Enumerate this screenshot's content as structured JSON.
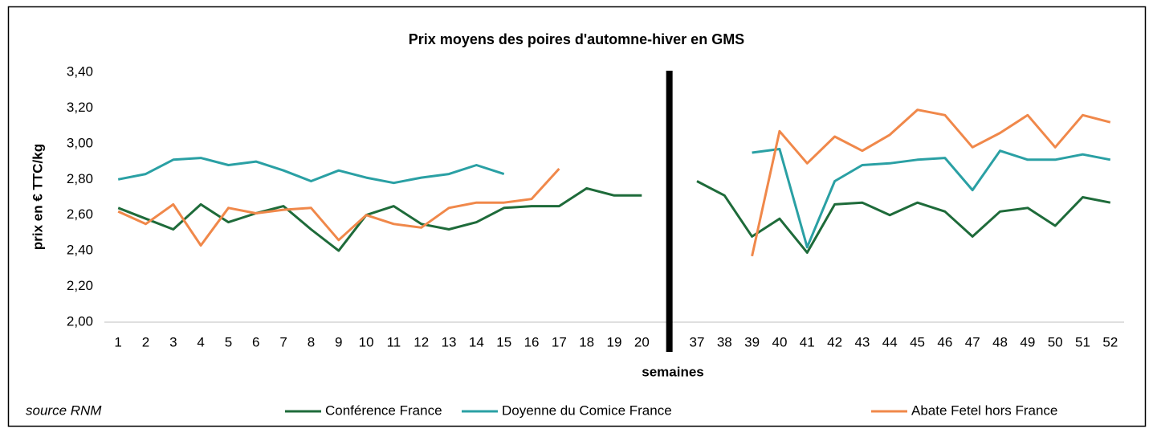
{
  "chart_data": {
    "type": "line",
    "title": "Prix moyens des poires d'automne-hiver en GMS",
    "y_label": "prix en € TTC/kg",
    "x_label": "semaines",
    "source": "source RNM",
    "categories": [
      "1",
      "2",
      "3",
      "4",
      "5",
      "6",
      "7",
      "8",
      "9",
      "10",
      "11",
      "12",
      "13",
      "14",
      "15",
      "16",
      "17",
      "18",
      "19",
      "20",
      null,
      "37",
      "38",
      "39",
      "40",
      "41",
      "42",
      "43",
      "44",
      "45",
      "46",
      "47",
      "48",
      "49",
      "50",
      "51",
      "52"
    ],
    "series": [
      {
        "name": "Conférence France",
        "color": "#1e6b3a",
        "values": [
          2.64,
          2.58,
          2.52,
          2.66,
          2.56,
          2.61,
          2.65,
          2.52,
          2.4,
          2.6,
          2.65,
          2.55,
          2.52,
          2.56,
          2.64,
          2.65,
          2.65,
          2.75,
          2.71,
          2.71,
          null,
          2.79,
          2.71,
          2.48,
          2.58,
          2.39,
          2.66,
          2.67,
          2.6,
          2.67,
          2.62,
          2.48,
          2.62,
          2.64,
          2.54,
          2.7,
          2.67
        ]
      },
      {
        "name": "Doyenne du Comice France",
        "color": "#2aa0a4",
        "values": [
          2.8,
          2.83,
          2.91,
          2.92,
          2.88,
          2.9,
          2.85,
          2.79,
          2.85,
          2.81,
          2.78,
          2.81,
          2.83,
          2.88,
          2.83,
          null,
          null,
          null,
          null,
          null,
          null,
          null,
          null,
          2.95,
          2.97,
          2.42,
          2.79,
          2.88,
          2.89,
          2.91,
          2.92,
          2.74,
          2.96,
          2.91,
          2.91,
          2.94,
          2.91
        ]
      },
      {
        "name": "Abate Fetel hors France",
        "color": "#f0884a",
        "values": [
          2.62,
          2.55,
          2.66,
          2.43,
          2.64,
          2.61,
          2.63,
          2.64,
          2.46,
          2.6,
          2.55,
          2.53,
          2.64,
          2.67,
          2.67,
          2.69,
          2.86,
          null,
          null,
          null,
          null,
          null,
          null,
          2.37,
          3.07,
          2.89,
          3.04,
          2.96,
          3.05,
          3.19,
          3.16,
          2.98,
          3.06,
          3.16,
          2.98,
          3.16,
          3.12
        ]
      }
    ],
    "ylim": [
      2.0,
      3.4
    ],
    "yticks": [
      {
        "value": 2.0,
        "label": "2,00"
      },
      {
        "value": 2.2,
        "label": "2,20"
      },
      {
        "value": 2.4,
        "label": "2,40"
      },
      {
        "value": 2.6,
        "label": "2,60"
      },
      {
        "value": 2.8,
        "label": "2,80"
      },
      {
        "value": 3.0,
        "label": "3,00"
      },
      {
        "value": 3.2,
        "label": "3,20"
      },
      {
        "value": 3.4,
        "label": "3,40"
      }
    ],
    "grid": false,
    "legend": "bottom"
  }
}
